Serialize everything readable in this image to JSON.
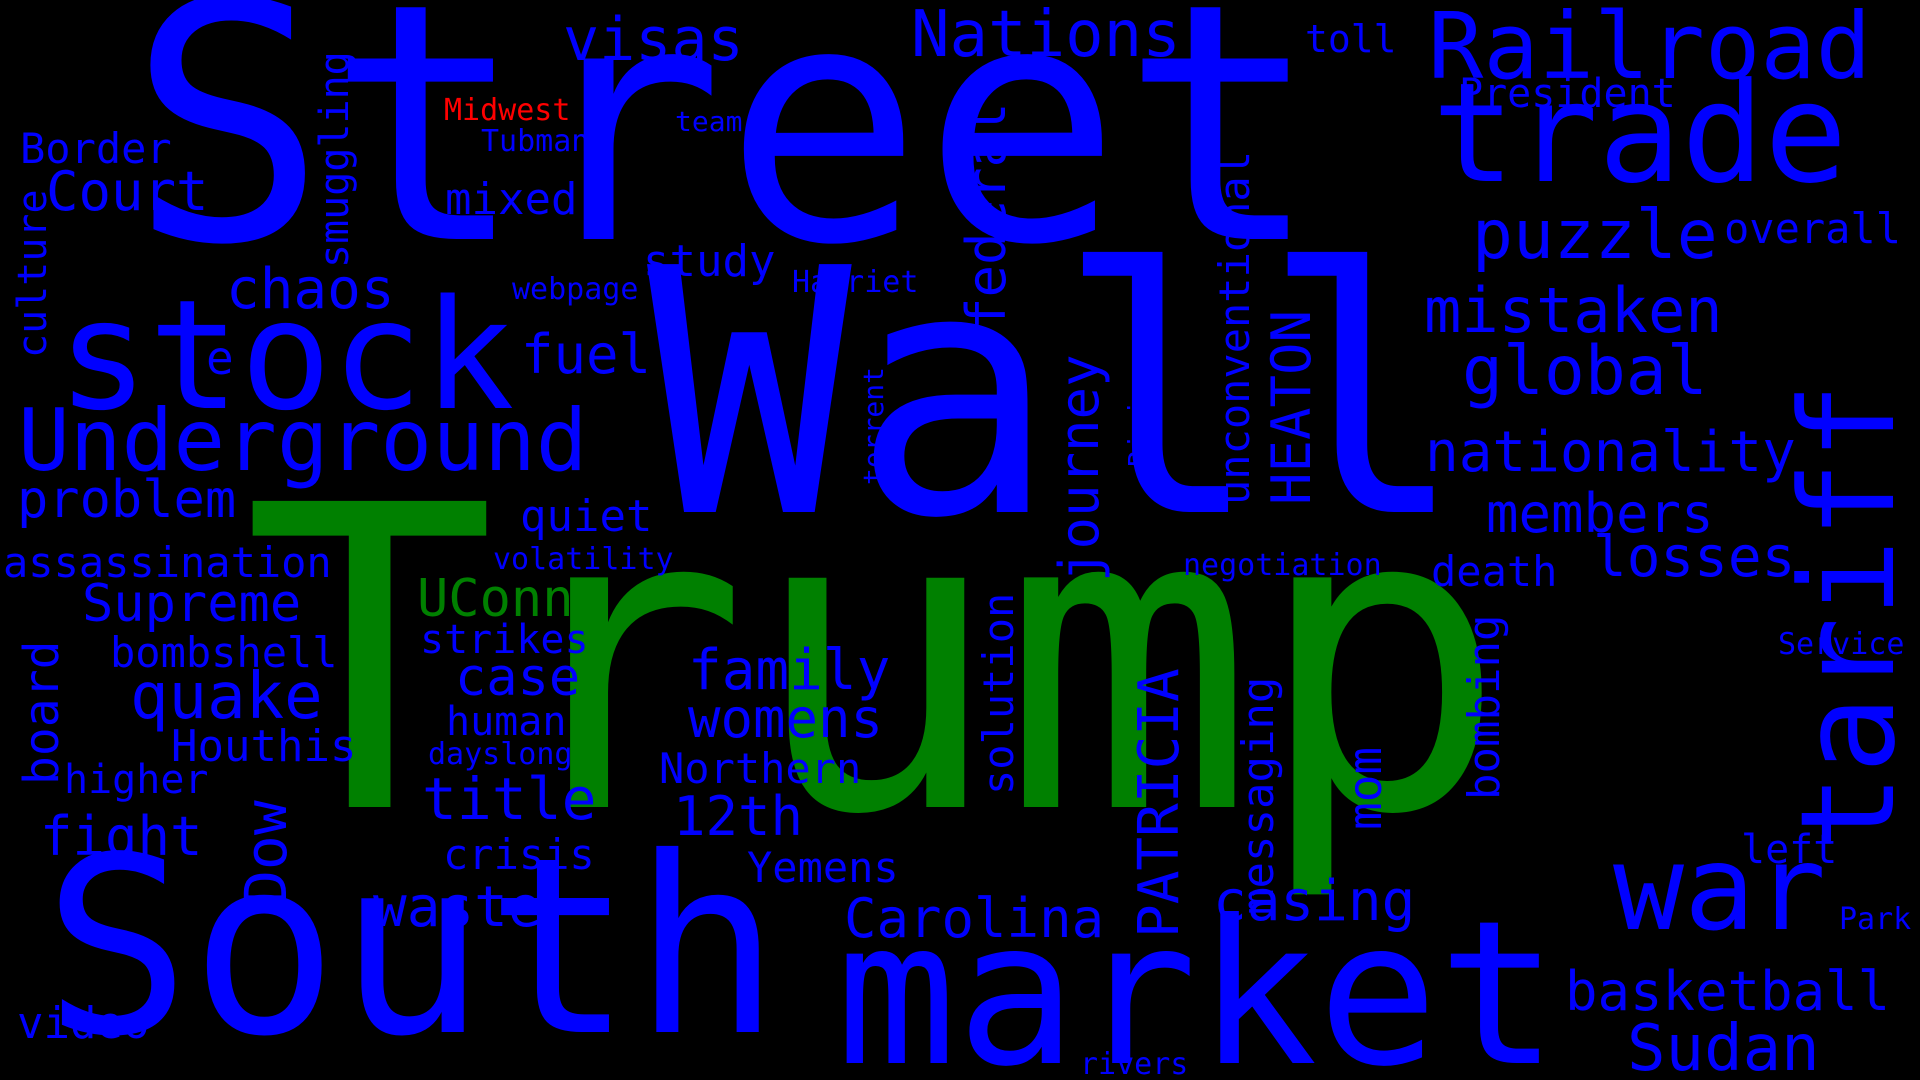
{
  "colors": {
    "background": "#000000",
    "blue": "#0000ff",
    "green": "#008000",
    "red": "#ff0000"
  },
  "words": {
    "street": "Street",
    "wall": "Wall",
    "trump": "Trump",
    "south": "South",
    "market": "market",
    "stock": "stock",
    "trade": "trade",
    "tariff": "tariff",
    "war": "war",
    "railroad": "Railroad",
    "underground": "Underground",
    "nations": "Nations",
    "visas": "visas",
    "toll": "toll",
    "president": "President",
    "midwest": "Midwest",
    "team": "team",
    "tubman": "Tubman",
    "border": "Border",
    "court": "Court",
    "smuggling": "smuggling",
    "culture": "culture",
    "mixed": "mixed",
    "federal": "federal",
    "unconventional": "unconventional",
    "puzzle": "puzzle",
    "overall": "overall",
    "chaos": "chaos",
    "study": "study",
    "webpage": "webpage",
    "harriet": "Harriet",
    "mistaken": "mistaken",
    "e": "e",
    "fuel": "fuel",
    "global": "global",
    "torrent": "torrent",
    "rising": "Rising",
    "heaton": "HEATON",
    "journey": "journey",
    "nationality": "nationality",
    "problem": "problem",
    "quiet": "quiet",
    "members": "members",
    "assassination": "assassination",
    "volatility": "volatility",
    "negotiation": "negotiation",
    "losses": "losses",
    "death": "death",
    "uconn": "UConn",
    "supreme": "Supreme",
    "strikes": "strikes",
    "bombshell": "bombshell",
    "board": "board",
    "service": "Service",
    "case": "case",
    "family": "family",
    "bombing": "bombing",
    "quake": "quake",
    "solution": "solution",
    "human": "human",
    "womens": "womens",
    "patricia": "PATRICIA",
    "messaging": "messaging",
    "houthis": "Houthis",
    "dayslong": "dayslong",
    "northern": "Northern",
    "higher": "higher",
    "dow": "Dow",
    "title": "title",
    "twelfth": "12th",
    "mom": "mom",
    "fight": "fight",
    "left": "left",
    "crisis": "crisis",
    "yemens": "Yemens",
    "waste": "waste",
    "casing": "casing",
    "carolina": "Carolina",
    "park": "Park",
    "basketball": "basketball",
    "video": "video",
    "sudan": "Sudan",
    "rivers": "rivers"
  }
}
